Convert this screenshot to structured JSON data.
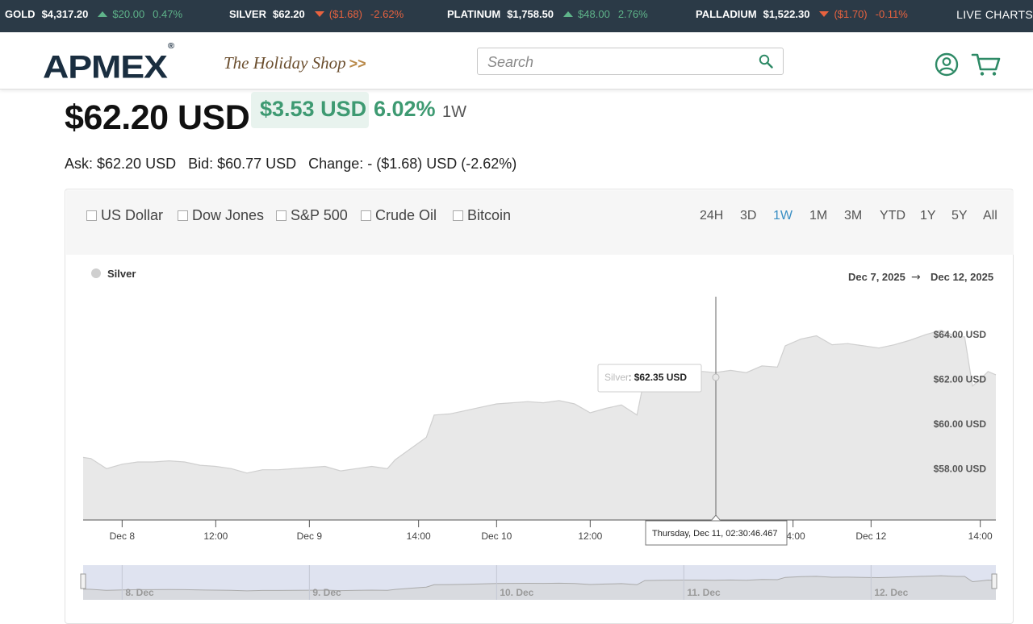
{
  "ticker": [
    {
      "name": "GOLD",
      "price": "$4,317.20",
      "change": "$20.00",
      "percent": "0.47%",
      "direction": "up"
    },
    {
      "name": "SILVER",
      "price": "$62.20",
      "change": "($1.68)",
      "percent": "-2.62%",
      "direction": "down"
    },
    {
      "name": "PLATINUM",
      "price": "$1,758.50",
      "change": "$48.00",
      "percent": "2.76%",
      "direction": "up"
    },
    {
      "name": "PALLADIUM",
      "price": "$1,522.30",
      "change": "($1.70)",
      "percent": "-0.11%",
      "direction": "down"
    }
  ],
  "live_charts": "LIVE CHARTS",
  "header": {
    "logo": "APMEX",
    "logo_mark": "®",
    "holiday": "The Holiday Shop",
    "holiday_arrows": ">>",
    "search_placeholder": "Search"
  },
  "price": {
    "current": "$62.20 USD",
    "change_amount": "$3.53 USD",
    "change_percent": "6.02%",
    "period": "1W",
    "ask": "Ask: $62.20 USD",
    "bid": "Bid: $60.77 USD",
    "change_line": "Change: - ($1.68) USD (-2.62%)"
  },
  "compare_options": [
    "US Dollar",
    "Dow Jones",
    "S&P 500",
    "Crude Oil",
    "Bitcoin"
  ],
  "ranges": [
    "24H",
    "3D",
    "1W",
    "1M",
    "3M",
    "YTD",
    "1Y",
    "5Y",
    "All"
  ],
  "active_range": "1W",
  "colors": {
    "ticker_bg": "#2b3a47",
    "up": "#5fb48a",
    "down": "#e8623f",
    "positive": "#3e9a72",
    "active_range": "#3a8fc4",
    "area_fill": "#e8e8e8",
    "area_line": "#cfcfcf",
    "navigator_bg": "#dfe3f0"
  },
  "chart_data": {
    "type": "area",
    "series": [
      {
        "name": "Silver",
        "values": [
          [
            "Dec 7 19:00",
            58.5
          ],
          [
            "Dec 7 20:00",
            58.45
          ],
          [
            "Dec 7 22:00",
            58.0
          ],
          [
            "Dec 8 00:00",
            58.2
          ],
          [
            "Dec 8 02:00",
            58.3
          ],
          [
            "Dec 8 04:00",
            58.3
          ],
          [
            "Dec 8 06:00",
            58.35
          ],
          [
            "Dec 8 08:00",
            58.3
          ],
          [
            "Dec 8 10:00",
            58.15
          ],
          [
            "Dec 8 12:00",
            58.1
          ],
          [
            "Dec 8 14:00",
            58.0
          ],
          [
            "Dec 8 16:00",
            57.8
          ],
          [
            "Dec 8 18:00",
            57.95
          ],
          [
            "Dec 8 20:00",
            57.95
          ],
          [
            "Dec 9 00:00",
            58.05
          ],
          [
            "Dec 9 02:00",
            58.1
          ],
          [
            "Dec 9 04:00",
            57.9
          ],
          [
            "Dec 9 06:00",
            58.0
          ],
          [
            "Dec 9 08:00",
            58.1
          ],
          [
            "Dec 9 10:00",
            58.0
          ],
          [
            "Dec 9 11:00",
            58.4
          ],
          [
            "Dec 9 13:00",
            58.9
          ],
          [
            "Dec 9 15:00",
            59.4
          ],
          [
            "Dec 9 16:00",
            60.4
          ],
          [
            "Dec 9 18:00",
            60.45
          ],
          [
            "Dec 9 20:00",
            60.6
          ],
          [
            "Dec 9 22:00",
            60.75
          ],
          [
            "Dec 10 00:00",
            60.9
          ],
          [
            "Dec 10 02:00",
            60.95
          ],
          [
            "Dec 10 04:00",
            61.0
          ],
          [
            "Dec 10 06:00",
            60.95
          ],
          [
            "Dec 10 08:00",
            61.05
          ],
          [
            "Dec 10 10:00",
            60.9
          ],
          [
            "Dec 10 12:00",
            60.5
          ],
          [
            "Dec 10 14:00",
            60.7
          ],
          [
            "Dec 10 16:00",
            60.85
          ],
          [
            "Dec 10 18:00",
            60.4
          ],
          [
            "Dec 10 19:00",
            62.15
          ],
          [
            "Dec 10 21:00",
            62.25
          ],
          [
            "Dec 11 00:00",
            62.35
          ],
          [
            "Dec 11 02:30",
            62.35
          ],
          [
            "Dec 11 04:00",
            62.3
          ],
          [
            "Dec 11 06:00",
            62.4
          ],
          [
            "Dec 11 08:00",
            62.3
          ],
          [
            "Dec 11 10:00",
            62.6
          ],
          [
            "Dec 11 12:00",
            62.55
          ],
          [
            "Dec 11 13:00",
            63.5
          ],
          [
            "Dec 11 15:00",
            63.8
          ],
          [
            "Dec 11 17:00",
            63.95
          ],
          [
            "Dec 11 19:00",
            63.55
          ],
          [
            "Dec 11 21:00",
            63.6
          ],
          [
            "Dec 11 23:00",
            63.5
          ],
          [
            "Dec 12 01:00",
            63.4
          ],
          [
            "Dec 12 03:00",
            63.55
          ],
          [
            "Dec 12 05:00",
            63.75
          ],
          [
            "Dec 12 07:00",
            64.0
          ],
          [
            "Dec 12 09:00",
            64.2
          ],
          [
            "Dec 12 10:00",
            64.05
          ],
          [
            "Dec 12 11:00",
            63.9
          ],
          [
            "Dec 12 12:00",
            63.9
          ],
          [
            "Dec 12 13:00",
            61.7
          ],
          [
            "Dec 12 14:00",
            62.0
          ],
          [
            "Dec 12 15:00",
            62.35
          ],
          [
            "Dec 12 16:00",
            62.2
          ]
        ]
      }
    ],
    "legend": "Silver",
    "legend_position": "top-left",
    "date_range": {
      "start": "Dec 7, 2025",
      "arrow": "→",
      "end": "Dec 12, 2025"
    },
    "y_ticks": [
      "$58.00 USD",
      "$60.00 USD",
      "$62.00 USD",
      "$64.00 USD"
    ],
    "ylim": [
      55.7,
      65.7
    ],
    "x_ticks": [
      "Dec 8",
      "12:00",
      "Dec 9",
      "14:00",
      "Dec 10",
      "12:00",
      "14:00",
      "Dec 12",
      "14:00"
    ],
    "navigator_ticks": [
      "8. Dec",
      "9. Dec",
      "10. Dec",
      "11. Dec",
      "12. Dec"
    ],
    "tooltip": {
      "series": "Silver",
      "value": "$62.35 USD",
      "date": "Thursday, Dec 11, 02:30:46.467"
    },
    "grid": false
  }
}
